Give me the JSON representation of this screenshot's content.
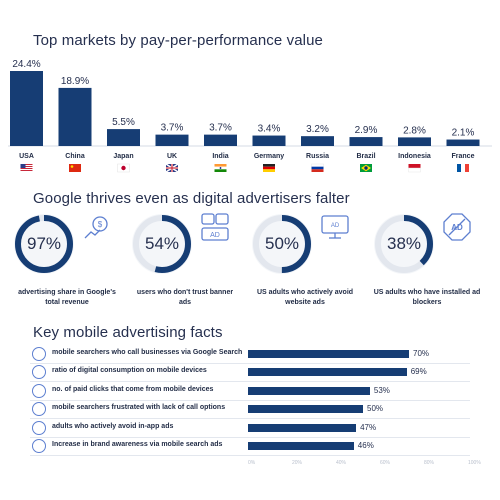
{
  "sections": {
    "markets_title": "Top markets by pay-per-performance value",
    "google_title": "Google thrives even as digital advertisers falter",
    "mobile_title": "Key mobile advertising facts"
  },
  "chart_data": [
    {
      "type": "bar",
      "title": "Top markets by pay-per-performance value",
      "categories": [
        "USA",
        "China",
        "Japan",
        "UK",
        "India",
        "Germany",
        "Russia",
        "Brazil",
        "Indonesia",
        "France"
      ],
      "values": [
        24.4,
        18.9,
        5.5,
        3.7,
        3.7,
        3.4,
        3.2,
        2.9,
        2.8,
        2.1
      ],
      "value_labels": [
        "24.4%",
        "18.9%",
        "5.5%",
        "3.7%",
        "3.7%",
        "3.4%",
        "3.2%",
        "2.9%",
        "2.8%",
        "2.1%"
      ],
      "flags": [
        "us-flag",
        "cn-flag",
        "jp-flag",
        "uk-flag",
        "in-flag",
        "de-flag",
        "ru-flag",
        "br-flag",
        "id-flag",
        "fr-flag"
      ],
      "bar_color": "#163d74",
      "grid": false
    },
    {
      "type": "pie",
      "title": "Google thrives even as digital advertisers falter",
      "items": [
        {
          "value": 97,
          "label": "97%",
          "caption": "advertising share in Google's total revenue",
          "icon": "money-growth-icon"
        },
        {
          "value": 54,
          "label": "54%",
          "caption": "users who don't trust banner ads",
          "icon": "ad-banner-icon"
        },
        {
          "value": 50,
          "label": "50%",
          "caption": "US adults who actively avoid website ads",
          "icon": "monitor-ad-icon"
        },
        {
          "value": 38,
          "label": "38%",
          "caption": "US adults who have installed ad blockers",
          "icon": "ad-block-icon"
        }
      ],
      "fill_color": "#163d74",
      "track_color": "#e3e7ee"
    },
    {
      "type": "bar",
      "orientation": "horizontal",
      "title": "Key mobile advertising facts",
      "categories": [
        "mobile searchers who call businesses via Google Search",
        "ratio of digital consumption on mobile devices",
        "no. of paid clicks that come from mobile devices",
        "mobile searchers frustrated with lack of call options",
        "adults who actively avoid in-app ads",
        "Increase in brand awareness via mobile search ads"
      ],
      "values": [
        70,
        69,
        53,
        50,
        47,
        46
      ],
      "value_labels": [
        "70%",
        "69%",
        "53%",
        "50%",
        "47%",
        "46%"
      ],
      "icons": [
        "phone-call-icon",
        "pie-chart-icon",
        "click-icon",
        "frustrated-face-icon",
        "ad-block-icon",
        "megaphone-icon"
      ],
      "x_ticks": [
        "0%",
        "20%",
        "40%",
        "60%",
        "80%",
        "100%"
      ],
      "xlim": [
        0,
        100
      ],
      "bar_color": "#163d74"
    }
  ],
  "colors": {
    "accent": "#163d74",
    "icon_blue": "#5d7fd0",
    "track": "#e3e7ee"
  }
}
